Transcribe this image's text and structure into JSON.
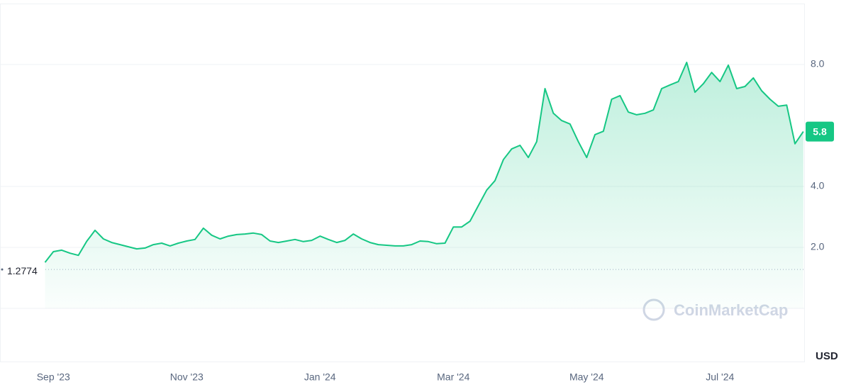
{
  "chart_data": {
    "type": "line",
    "categories": [
      null,
      "Sep '23",
      null,
      null,
      null,
      null,
      null,
      null,
      null,
      null,
      null,
      null,
      null,
      null,
      null,
      null,
      null,
      "Nov '23",
      null,
      null,
      null,
      null,
      null,
      null,
      null,
      null,
      null,
      null,
      null,
      null,
      null,
      null,
      null,
      "Jan '24",
      null,
      null,
      null,
      null,
      null,
      null,
      null,
      null,
      null,
      null,
      null,
      null,
      null,
      null,
      null,
      "Mar '24",
      null,
      null,
      null,
      null,
      null,
      null,
      null,
      null,
      null,
      null,
      null,
      null,
      null,
      null,
      null,
      "May '24",
      null,
      null,
      null,
      null,
      null,
      null,
      null,
      null,
      null,
      null,
      null,
      null,
      null,
      null,
      null,
      "Jul '24",
      null,
      null,
      null,
      null,
      null,
      null,
      null,
      null,
      null,
      null
    ],
    "values": [
      1.51,
      1.86,
      1.91,
      1.81,
      1.74,
      2.2,
      2.56,
      2.28,
      2.16,
      2.09,
      2.02,
      1.95,
      1.98,
      2.09,
      2.14,
      2.05,
      2.14,
      2.21,
      2.26,
      2.63,
      2.4,
      2.28,
      2.37,
      2.42,
      2.44,
      2.47,
      2.42,
      2.21,
      2.16,
      2.21,
      2.26,
      2.19,
      2.23,
      2.37,
      2.26,
      2.16,
      2.23,
      2.44,
      2.28,
      2.16,
      2.09,
      2.07,
      2.05,
      2.05,
      2.09,
      2.21,
      2.19,
      2.12,
      2.14,
      2.67,
      2.67,
      2.86,
      3.37,
      3.88,
      4.19,
      4.88,
      5.23,
      5.35,
      4.95,
      5.47,
      7.21,
      6.4,
      6.16,
      6.05,
      5.47,
      4.95,
      5.7,
      5.81,
      6.86,
      6.98,
      6.44,
      6.35,
      6.4,
      6.51,
      7.21,
      7.33,
      7.44,
      8.07,
      7.09,
      7.37,
      7.74,
      7.44,
      7.98,
      7.21,
      7.28,
      7.56,
      7.14,
      6.86,
      6.63,
      6.67,
      5.4,
      5.8
    ],
    "color": "#16c784",
    "ylim": [
      0,
      10
    ],
    "yticks": [
      {
        "value": 2,
        "label": "2.0"
      },
      {
        "value": 4,
        "label": "4.0"
      },
      {
        "value": 8,
        "label": "8.0"
      }
    ],
    "grid": true,
    "reference_value": 1.2774,
    "current_price": 5.8,
    "currency": "USD",
    "watermark": "CoinMarketCap"
  }
}
